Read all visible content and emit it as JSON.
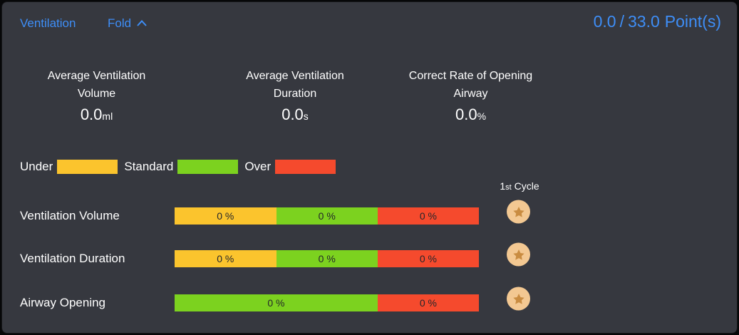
{
  "colors": {
    "accent_blue": "#3E8EF7",
    "panel_bg": "#36383F",
    "under_yellow": "#FBC42D",
    "standard_green": "#7CD21F",
    "over_red": "#F54A2D",
    "badge_circle": "#F3C892",
    "badge_star": "#C98C41",
    "bar_text": "#24262B",
    "text_white": "#FFFFFF"
  },
  "header": {
    "title": "Ventilation",
    "fold_label": "Fold",
    "score": {
      "current": "0.0",
      "separator": "/",
      "total": "33.0",
      "unit": "Point(s)"
    }
  },
  "stats": [
    {
      "title_line1": "Average Ventilation",
      "title_line2": "Volume",
      "value": "0.0",
      "unit": "ml"
    },
    {
      "title_line1": "Average Ventilation",
      "title_line2": "Duration",
      "value": "0.0",
      "unit": "s"
    },
    {
      "title_line1": "Correct Rate of Opening",
      "title_line2": "Airway",
      "value": "0.0",
      "unit": "%"
    }
  ],
  "legend": {
    "items": [
      {
        "label": "Under",
        "color": "#FBC42D"
      },
      {
        "label": "Standard",
        "color": "#7CD21F"
      },
      {
        "label": "Over",
        "color": "#F54A2D"
      }
    ]
  },
  "cycle_header": {
    "number": "1",
    "ordinal": "st",
    "label": " Cycle"
  },
  "rows": [
    {
      "label": "Ventilation Volume",
      "segments": [
        {
          "label": "0 %",
          "color": "#FBC42D",
          "pct": 33.4
        },
        {
          "label": "0 %",
          "color": "#7CD21F",
          "pct": 33.3
        },
        {
          "label": "0 %",
          "color": "#F54A2D",
          "pct": 33.3
        }
      ]
    },
    {
      "label": "Ventilation Duration",
      "segments": [
        {
          "label": "0 %",
          "color": "#FBC42D",
          "pct": 33.4
        },
        {
          "label": "0 %",
          "color": "#7CD21F",
          "pct": 33.3
        },
        {
          "label": "0 %",
          "color": "#F54A2D",
          "pct": 33.3
        }
      ]
    },
    {
      "label": "Airway Opening",
      "segments": [
        {
          "label": "0 %",
          "color": "#7CD21F",
          "pct": 66.7
        },
        {
          "label": "0 %",
          "color": "#F54A2D",
          "pct": 33.3
        }
      ]
    }
  ]
}
